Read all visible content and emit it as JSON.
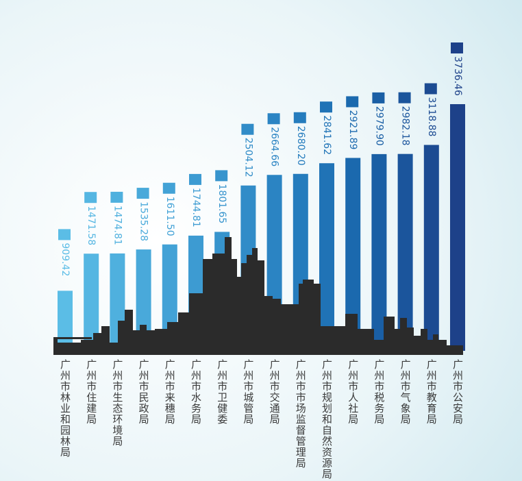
{
  "chart_data": {
    "type": "bar",
    "categories": [
      "广州市林业和园林局",
      "广州市住建局",
      "广州市生态环境局",
      "广州市民政局",
      "广州市来穗局",
      "广州市水务局",
      "广州市卫健委",
      "广州市城管局",
      "广州市交通局",
      "广州市市场监督管理局",
      "广州市规划和自然资源局",
      "广州市人社局",
      "广州市税务局",
      "广州市气象局",
      "广州市教育局",
      "广州市公安局"
    ],
    "values": [
      909.42,
      1471.58,
      1474.81,
      1535.28,
      1611.5,
      1744.81,
      1801.65,
      2504.12,
      2664.66,
      2680.2,
      2841.62,
      2921.89,
      2979.9,
      2982.18,
      3118.88,
      3736.46
    ],
    "value_labels": [
      "909.42",
      "1471.58",
      "1474.81",
      "1535.28",
      "1611.50",
      "1744.81",
      "1801.65",
      "2504.12",
      "2664.66",
      "2680.20",
      "2841.62",
      "2921.89",
      "2979.90",
      "2982.18",
      "3118.88",
      "3736.46"
    ],
    "colors": [
      "#5bbde6",
      "#55b6e2",
      "#4fb0de",
      "#49a9da",
      "#43a2d6",
      "#3d9bd2",
      "#3794cd",
      "#318cc8",
      "#2b84c3",
      "#257cbd",
      "#2073b6",
      "#1b69ae",
      "#1a5fa5",
      "#1b559c",
      "#1c4b92",
      "#1d4189"
    ]
  }
}
